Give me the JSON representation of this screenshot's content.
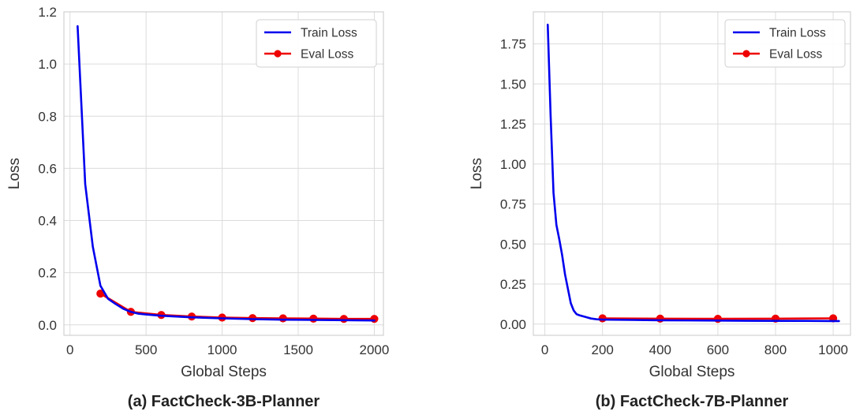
{
  "chart_data": [
    {
      "type": "line",
      "title": "(a) FactCheck-3B-Planner",
      "xlabel": "Global Steps",
      "ylabel": "Loss",
      "xlim": [
        -40,
        2060
      ],
      "ylim": [
        -0.04,
        1.2
      ],
      "xticks": [
        0,
        500,
        1000,
        1500,
        2000
      ],
      "yticks": [
        0.0,
        0.2,
        0.4,
        0.6,
        0.8,
        1.0,
        1.2
      ],
      "ytick_labels": [
        "0.0",
        "0.2",
        "0.4",
        "0.6",
        "0.8",
        "1.0",
        "1.2"
      ],
      "grid": true,
      "legend_position": "top-right",
      "series": [
        {
          "name": "Train Loss",
          "color": "#0000ee",
          "markers": false,
          "x": [
            50,
            100,
            150,
            200,
            250,
            300,
            350,
            400,
            450,
            500,
            600,
            800,
            1000,
            1200,
            1400,
            1600,
            1800,
            2000
          ],
          "y": [
            1.145,
            0.54,
            0.3,
            0.15,
            0.1,
            0.08,
            0.062,
            0.05,
            0.043,
            0.04,
            0.035,
            0.029,
            0.025,
            0.022,
            0.02,
            0.019,
            0.018,
            0.017
          ]
        },
        {
          "name": "Eval Loss",
          "color": "#ee0000",
          "markers": true,
          "x": [
            200,
            400,
            600,
            800,
            1000,
            1200,
            1400,
            1600,
            1800,
            2000
          ],
          "y": [
            0.12,
            0.05,
            0.038,
            0.032,
            0.028,
            0.026,
            0.025,
            0.024,
            0.023,
            0.023
          ]
        }
      ]
    },
    {
      "type": "line",
      "title": "(b) FactCheck-7B-Planner",
      "xlabel": "Global Steps",
      "ylabel": "Loss",
      "xlim": [
        -40,
        1060
      ],
      "ylim": [
        -0.07,
        1.95
      ],
      "xticks": [
        0,
        200,
        400,
        600,
        800,
        1000
      ],
      "yticks": [
        0.0,
        0.25,
        0.5,
        0.75,
        1.0,
        1.25,
        1.5,
        1.75
      ],
      "ytick_labels": [
        "0.00",
        "0.25",
        "0.50",
        "0.75",
        "1.00",
        "1.25",
        "1.50",
        "1.75"
      ],
      "grid": true,
      "legend_position": "top-right",
      "series": [
        {
          "name": "Train Loss",
          "color": "#0000ee",
          "markers": false,
          "x": [
            10,
            20,
            30,
            40,
            50,
            60,
            70,
            80,
            90,
            100,
            110,
            120,
            140,
            160,
            180,
            200,
            300,
            400,
            500,
            600,
            700,
            800,
            900,
            1000,
            1020
          ],
          "y": [
            1.87,
            1.3,
            0.82,
            0.62,
            0.53,
            0.43,
            0.31,
            0.22,
            0.13,
            0.085,
            0.062,
            0.055,
            0.045,
            0.035,
            0.03,
            0.028,
            0.026,
            0.024,
            0.023,
            0.022,
            0.021,
            0.02,
            0.02,
            0.019,
            0.019
          ]
        },
        {
          "name": "Eval Loss",
          "color": "#ee0000",
          "markers": true,
          "x": [
            200,
            400,
            600,
            800,
            1000
          ],
          "y": [
            0.036,
            0.034,
            0.033,
            0.034,
            0.036
          ]
        }
      ]
    }
  ]
}
